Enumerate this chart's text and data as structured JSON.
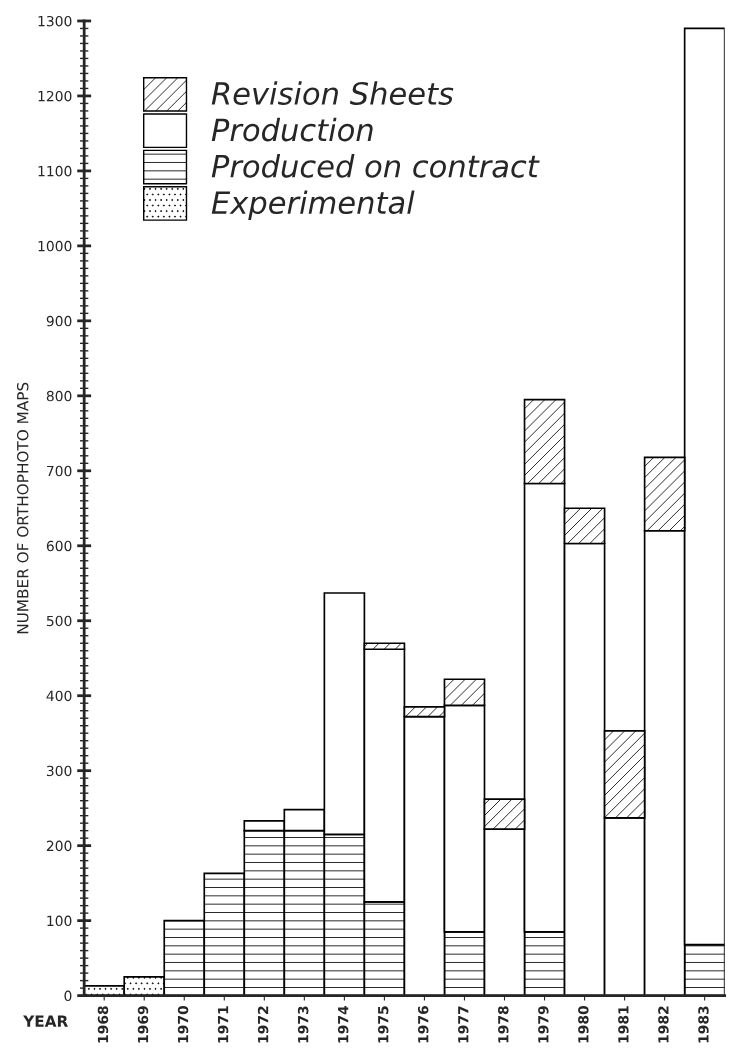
{
  "chart_data": {
    "type": "bar",
    "stacked": true,
    "xlabel": "YEAR",
    "ylabel": "NUMBER OF ORTHOPHOTO MAPS",
    "categories": [
      "1968",
      "1969",
      "1970",
      "1971",
      "1972",
      "1973",
      "1974",
      "1975",
      "1976",
      "1977",
      "1978",
      "1979",
      "1980",
      "1981",
      "1982",
      "1983"
    ],
    "series": [
      {
        "name": "Experimental",
        "color": "#000000",
        "values": [
          13,
          25,
          null,
          null,
          null,
          null,
          null,
          null,
          null,
          null,
          null,
          null,
          null,
          null,
          null,
          null
        ]
      },
      {
        "name": "Produced on contract",
        "color": "#000000",
        "values": [
          null,
          null,
          100,
          163,
          220,
          220,
          215,
          125,
          null,
          85,
          null,
          85,
          null,
          null,
          null,
          68
        ]
      },
      {
        "name": "Production",
        "color": "#ffffff",
        "values": [
          null,
          null,
          null,
          null,
          13,
          28,
          322,
          337,
          372,
          302,
          222,
          598,
          603,
          237,
          620,
          1222
        ]
      },
      {
        "name": "Revision Sheets",
        "color": "#000000",
        "values": [
          null,
          null,
          null,
          null,
          null,
          null,
          null,
          8,
          13,
          35,
          40,
          112,
          47,
          116,
          98,
          null
        ]
      }
    ],
    "ylim": [
      0,
      1300
    ],
    "yticks": [
      0,
      100,
      200,
      300,
      400,
      500,
      600,
      700,
      800,
      900,
      1000,
      1100,
      1200,
      1300
    ],
    "grid": false,
    "legend": "top left"
  }
}
